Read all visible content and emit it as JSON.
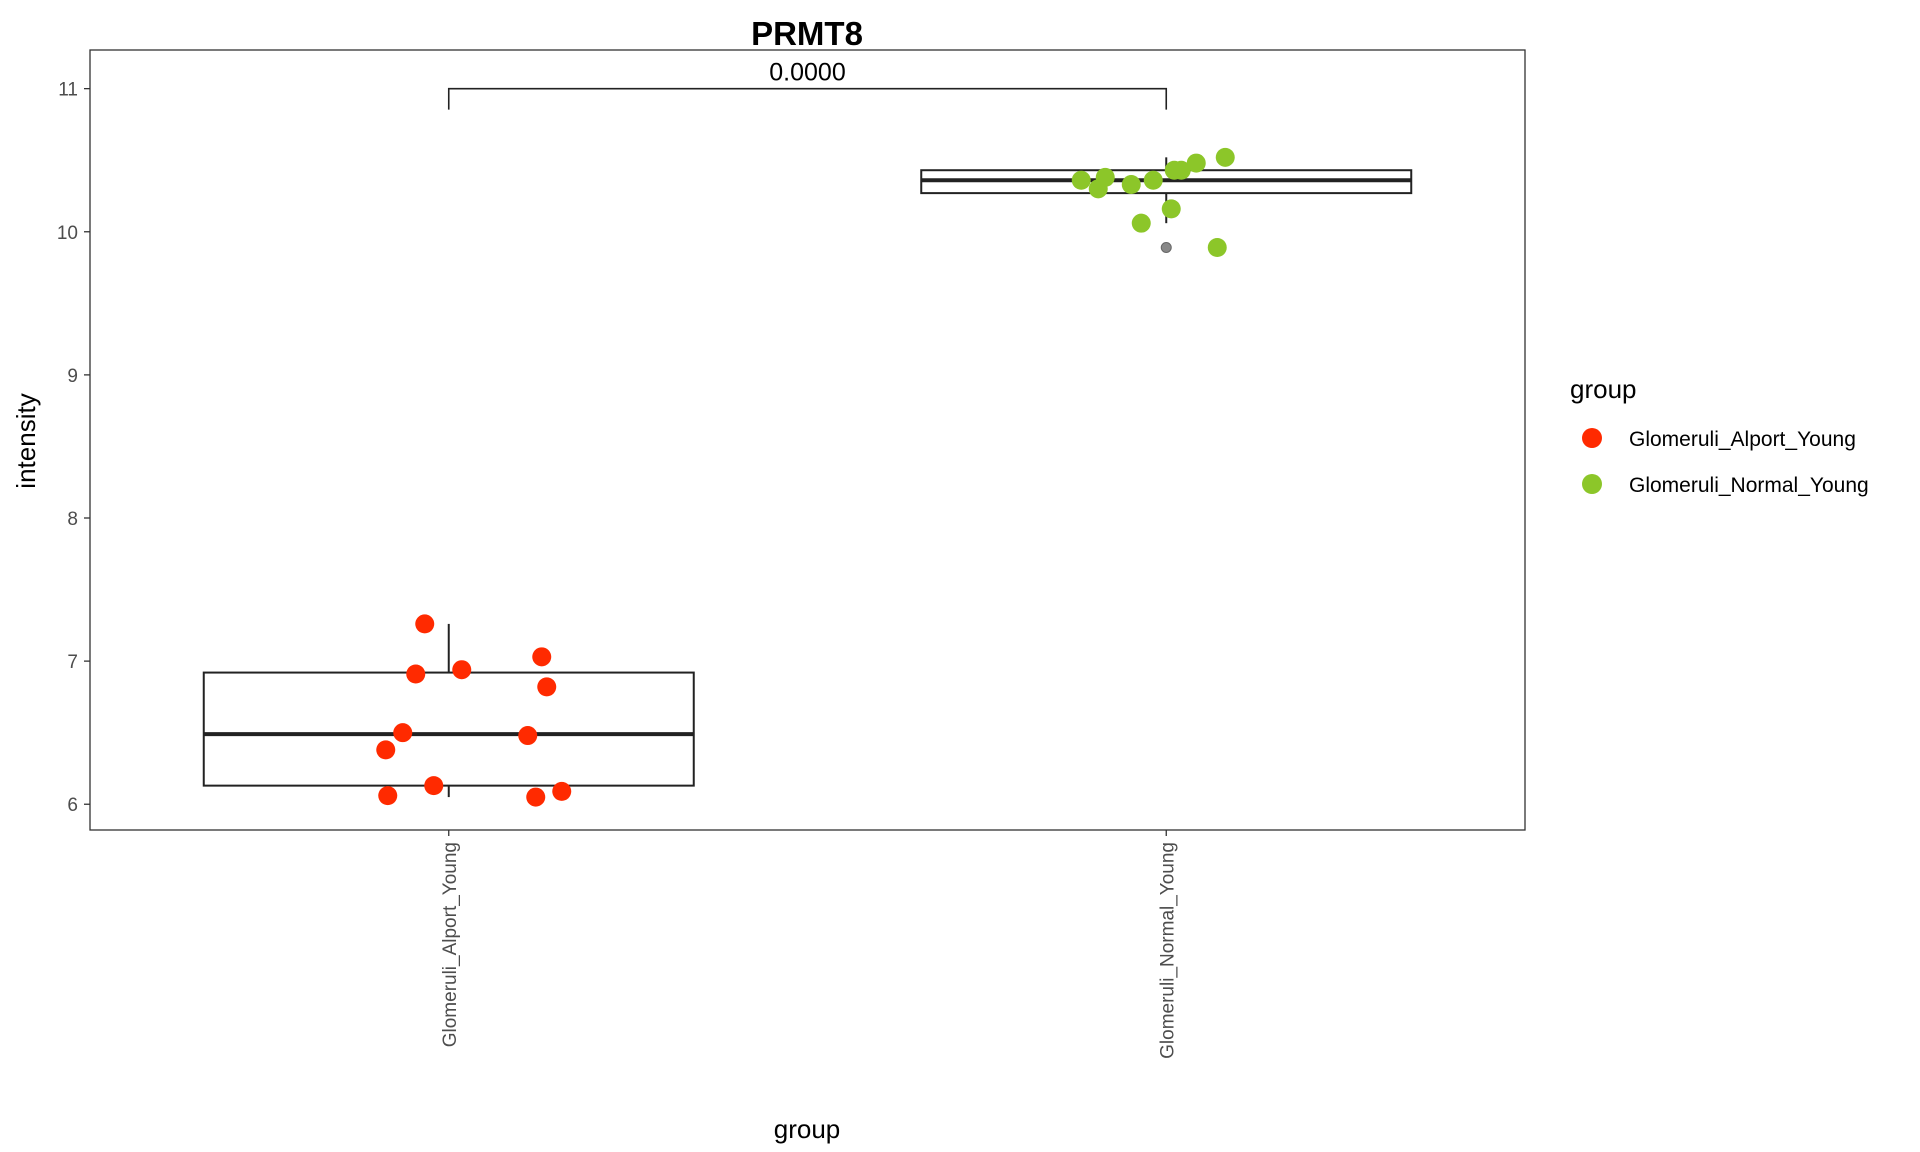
{
  "chart_data": {
    "type": "box",
    "title": "PRMT8",
    "xlabel": "group",
    "ylabel": "intensity",
    "ylim": [
      5.82,
      11.27
    ],
    "yticks": [
      "6",
      "7",
      "8",
      "9",
      "10",
      "11"
    ],
    "categories": [
      "Glomeruli_Alport_Young",
      "Glomeruli_Normal_Young"
    ],
    "legend": {
      "title": "group",
      "position": "right",
      "entries": [
        {
          "label": "Glomeruli_Alport_Young",
          "color": "#ff2a00"
        },
        {
          "label": "Glomeruli_Normal_Young",
          "color": "#8cc629"
        }
      ]
    },
    "boxes": [
      {
        "category": "Glomeruli_Alport_Young",
        "min": 6.05,
        "q1": 6.13,
        "median": 6.49,
        "q3": 6.92,
        "max": 7.26,
        "outliers": []
      },
      {
        "category": "Glomeruli_Normal_Young",
        "min": 10.06,
        "q1": 10.27,
        "median": 10.36,
        "q3": 10.43,
        "max": 10.52,
        "outliers": [
          9.89
        ]
      }
    ],
    "series": [
      {
        "category": "Glomeruli_Alport_Young",
        "color": "#ff2a00",
        "points": [
          {
            "jitter": -0.24,
            "y": 7.26
          },
          {
            "jitter": -0.33,
            "y": 6.91
          },
          {
            "jitter": 0.13,
            "y": 6.94
          },
          {
            "jitter": 0.93,
            "y": 7.03
          },
          {
            "jitter": 0.98,
            "y": 6.82
          },
          {
            "jitter": -0.46,
            "y": 6.5
          },
          {
            "jitter": 0.79,
            "y": 6.48
          },
          {
            "jitter": -0.63,
            "y": 6.38
          },
          {
            "jitter": -0.15,
            "y": 6.13
          },
          {
            "jitter": -0.61,
            "y": 6.06
          },
          {
            "jitter": 0.87,
            "y": 6.05
          },
          {
            "jitter": 1.13,
            "y": 6.09
          }
        ]
      },
      {
        "category": "Glomeruli_Normal_Young",
        "color": "#8cc629",
        "points": [
          {
            "jitter": -0.85,
            "y": 10.36
          },
          {
            "jitter": -0.68,
            "y": 10.3
          },
          {
            "jitter": -0.61,
            "y": 10.38
          },
          {
            "jitter": -0.35,
            "y": 10.33
          },
          {
            "jitter": -0.13,
            "y": 10.36
          },
          {
            "jitter": 0.08,
            "y": 10.43
          },
          {
            "jitter": 0.15,
            "y": 10.43
          },
          {
            "jitter": 0.3,
            "y": 10.48
          },
          {
            "jitter": 0.59,
            "y": 10.52
          },
          {
            "jitter": -0.25,
            "y": 10.06
          },
          {
            "jitter": 0.05,
            "y": 10.16
          },
          {
            "jitter": 0.51,
            "y": 9.89
          }
        ]
      }
    ],
    "comparison": {
      "groups": [
        "Glomeruli_Alport_Young",
        "Glomeruli_Normal_Young"
      ],
      "y": 11.0,
      "label": "0.0000"
    }
  }
}
